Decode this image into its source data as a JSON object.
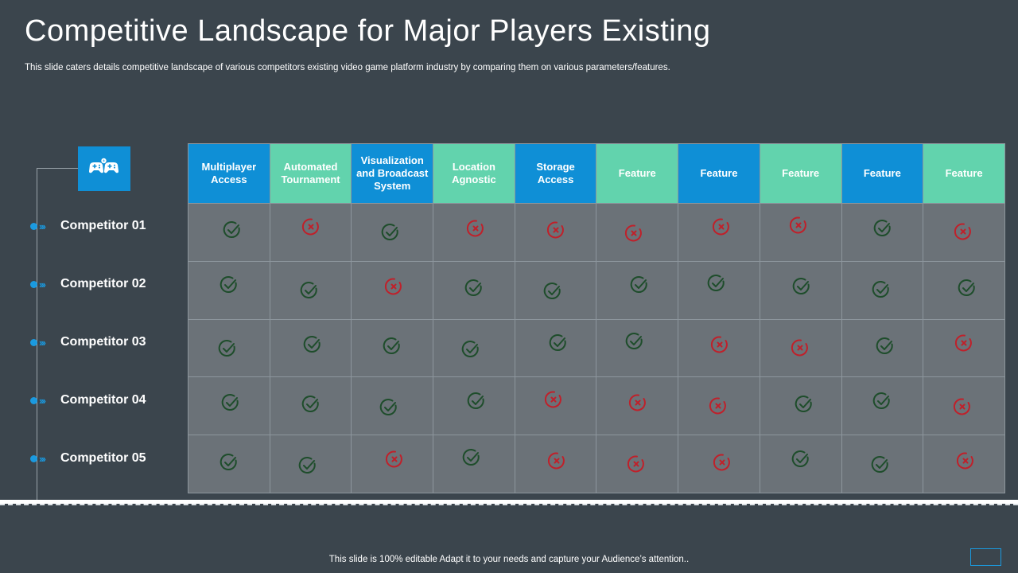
{
  "title": "Competitive Landscape for Major Players Existing",
  "subtitle": "This slide caters details competitive landscape of various competitors existing video game platform industry by comparing them on various parameters/features.",
  "header_icon": "game-controllers-icon",
  "columns": [
    {
      "label": "Multiplayer Access",
      "color": "#0f8fd6"
    },
    {
      "label": "Automated Tournament",
      "color": "#62d3ad"
    },
    {
      "label": "Visualization and Broadcast System",
      "color": "#0f8fd6"
    },
    {
      "label": "Location Agnostic",
      "color": "#62d3ad"
    },
    {
      "label": "Storage Access",
      "color": "#0f8fd6"
    },
    {
      "label": "Feature",
      "color": "#62d3ad"
    },
    {
      "label": "Feature",
      "color": "#0f8fd6"
    },
    {
      "label": "Feature",
      "color": "#62d3ad"
    },
    {
      "label": "Feature",
      "color": "#0f8fd6"
    },
    {
      "label": "Feature",
      "color": "#62d3ad"
    }
  ],
  "competitors": [
    {
      "name": "Competitor 01",
      "marks": [
        "check",
        "cross",
        "check",
        "cross",
        "cross",
        "cross",
        "cross",
        "cross",
        "check",
        "cross"
      ]
    },
    {
      "name": "Competitor 02",
      "marks": [
        "check",
        "check",
        "cross",
        "check",
        "check",
        "check",
        "check",
        "check",
        "check",
        "check"
      ]
    },
    {
      "name": "Competitor 03",
      "marks": [
        "check",
        "check",
        "check",
        "check",
        "check",
        "check",
        "cross",
        "cross",
        "check",
        "cross"
      ]
    },
    {
      "name": "Competitor 04",
      "marks": [
        "check",
        "check",
        "check",
        "check",
        "cross",
        "cross",
        "cross",
        "check",
        "check",
        "cross"
      ]
    },
    {
      "name": "Competitor 05",
      "marks": [
        "check",
        "check",
        "cross",
        "check",
        "cross",
        "cross",
        "cross",
        "check",
        "check",
        "cross"
      ]
    }
  ],
  "mark_colors": {
    "check": "#1e4d2b",
    "cross": "#c0202a"
  },
  "footer": "This slide is 100% editable Adapt it to your needs and capture your Audience’s attention.."
}
